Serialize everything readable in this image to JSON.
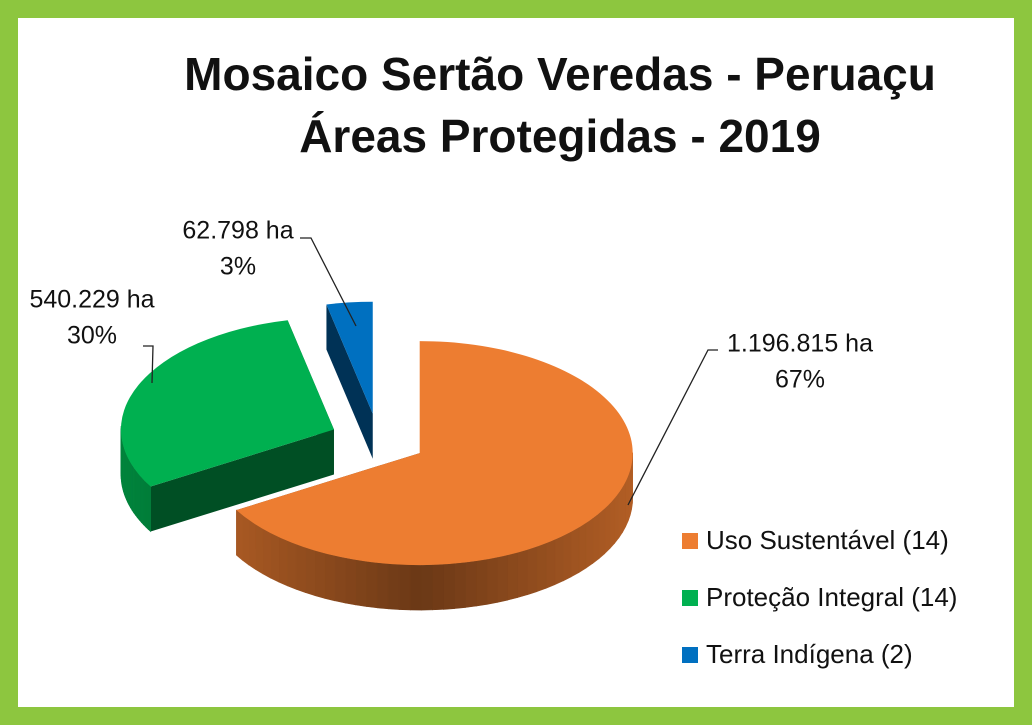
{
  "chart_data": {
    "type": "pie",
    "title": [
      "Mosaico Sertão Veredas - Peruaçu",
      "Áreas Protegidas - 2019"
    ],
    "categories": [
      "Uso Sustentável (14)",
      "Proteção Integral (14)",
      "Terra Indígena (2)"
    ],
    "values": [
      1196815,
      540229,
      62798
    ],
    "value_labels": [
      "1.196.815 ha",
      "540.229 ha",
      "62.798 ha"
    ],
    "percents": [
      67,
      30,
      3
    ],
    "percent_labels": [
      "67%",
      "30%",
      "3%"
    ],
    "colors": [
      "#ed7d31",
      "#00b050",
      "#0070c0"
    ],
    "legend": "right"
  }
}
